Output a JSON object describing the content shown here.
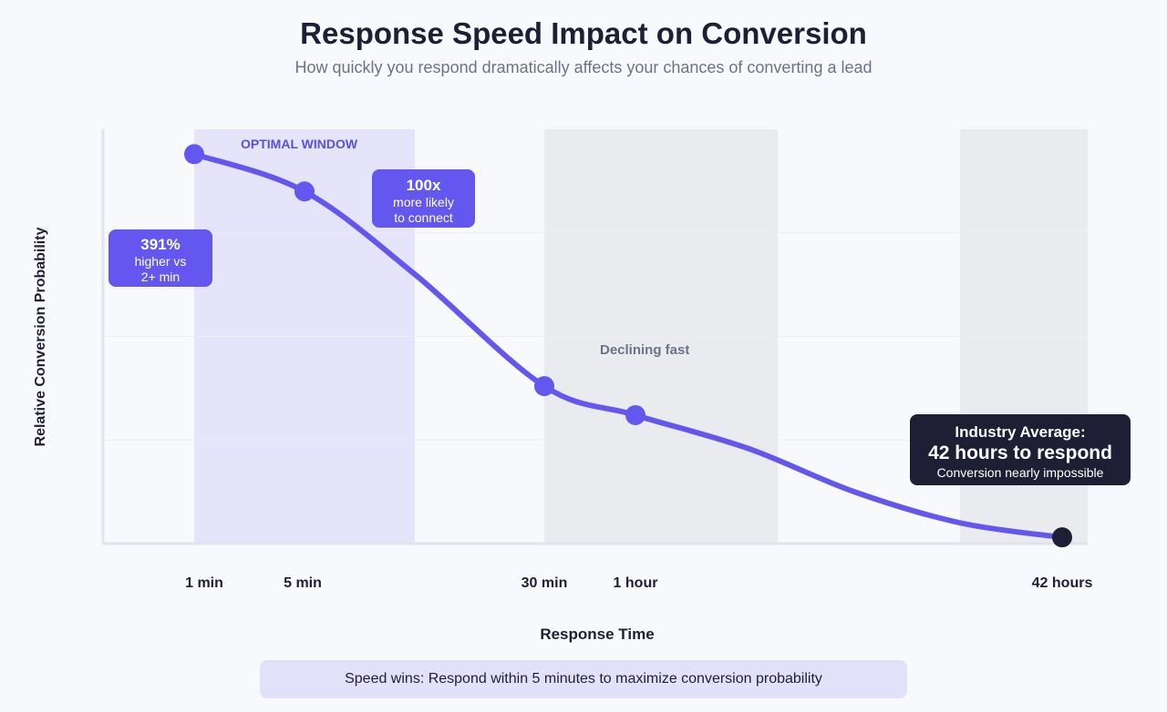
{
  "chart_data": {
    "type": "line",
    "title": "Response Speed Impact on Conversion",
    "subtitle": "How quickly you respond dramatically affects your chances of converting a lead",
    "xlabel": "Response Time",
    "ylabel": "Relative Conversion Probability",
    "ylim": [
      0,
      100
    ],
    "grid": true,
    "x_ticks": [
      "1 min",
      "5 min",
      "30 min",
      "1 hour",
      "42 hours"
    ],
    "points": [
      {
        "x": "1 min",
        "y": 94,
        "marker": true
      },
      {
        "x": "5 min",
        "y": 85,
        "marker": true
      },
      {
        "x": "",
        "y": 65,
        "marker": false
      },
      {
        "x": "30 min",
        "y": 38,
        "marker": true
      },
      {
        "x": "1 hour",
        "y": 31,
        "marker": true
      },
      {
        "x": "",
        "y": 23,
        "marker": false
      },
      {
        "x": "",
        "y": 12.5,
        "marker": false
      },
      {
        "x": "",
        "y": 5,
        "marker": false
      },
      {
        "x": "42 hours",
        "y": 1.5,
        "marker": true,
        "highlight": true
      }
    ],
    "bands": [
      {
        "label": "OPTIMAL WINDOW",
        "color": "#e6e4fa",
        "label_color": "#5b4fe0"
      },
      {
        "label": "Declining fast",
        "color": "#e9ebef",
        "label_color": "#6b7385"
      },
      {
        "label": "",
        "color": "#e9ebef"
      }
    ],
    "annotations": {
      "a391": {
        "big": "391%",
        "line1": "higher vs",
        "line2": "2+ min"
      },
      "a100": {
        "big": "100x",
        "line1": "more likely",
        "line2": "to connect"
      },
      "industry": {
        "line1": "Industry Average:",
        "big": "42 hours to respond",
        "line2": "Conversion nearly impossible"
      }
    },
    "colors": {
      "line": "#6457f0",
      "highlight": "#1e1f35",
      "grid": "#eceef3"
    }
  },
  "footer": "Speed wins: Respond within 5 minutes to maximize conversion probability"
}
